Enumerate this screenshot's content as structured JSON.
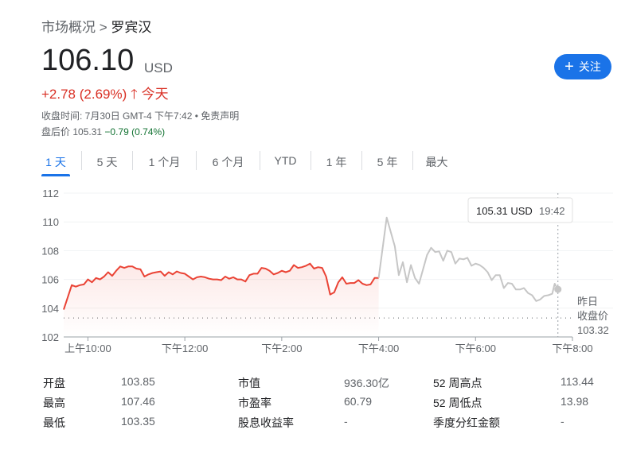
{
  "breadcrumb": {
    "parent": "市场概况",
    "separator": ">",
    "current": "罗宾汉"
  },
  "quote": {
    "price": "106.10",
    "currency": "USD",
    "change": "+2.78 (2.69%)",
    "change_direction": "up",
    "change_period": "今天",
    "close_time": "收盘时间: 7月30日 GMT-4 下午7:42 • 免责声明",
    "after_hours_label": "盘后价",
    "after_hours_price": "105.31",
    "after_hours_change": "−0.79 (0.74%)"
  },
  "follow_button": {
    "label": "关注",
    "icon": "plus-icon",
    "color": "#1a73e8"
  },
  "tabs": [
    {
      "label": "1 天",
      "selected": true
    },
    {
      "label": "5 天"
    },
    {
      "label": "1 个月"
    },
    {
      "label": "6 个月"
    },
    {
      "label": "YTD"
    },
    {
      "label": "1 年"
    },
    {
      "label": "5 年"
    },
    {
      "label": "最大"
    }
  ],
  "chart_data": {
    "type": "line",
    "ylim": [
      102,
      112
    ],
    "yticks": [
      "102",
      "104",
      "106",
      "108",
      "110",
      "112"
    ],
    "xlim": [
      "09:30",
      "20:00"
    ],
    "xticks": [
      {
        "t": "10:00",
        "label": "上午10:00"
      },
      {
        "t": "12:00",
        "label": "下午12:00"
      },
      {
        "t": "14:00",
        "label": "下午2:00"
      },
      {
        "t": "16:00",
        "label": "下午4:00"
      },
      {
        "t": "18:00",
        "label": "下午6:00"
      },
      {
        "t": "20:00",
        "label": "下午8:00"
      }
    ],
    "grid": true,
    "previous_close": {
      "label1": "昨日",
      "label2": "收盘价",
      "value": 103.32,
      "value_text": "103.32"
    },
    "tooltip": {
      "price": "105.31 USD",
      "time": "19:42"
    },
    "colors": {
      "regular": "#ea4335",
      "after_hours": "#c6c6c6"
    },
    "series": [
      {
        "session": "regular",
        "points": [
          [
            "09:30",
            103.9
          ],
          [
            "09:40",
            105.6
          ],
          [
            "09:45",
            105.5
          ],
          [
            "09:50",
            105.6
          ],
          [
            "09:55",
            105.65
          ],
          [
            "10:00",
            106.0
          ],
          [
            "10:05",
            105.8
          ],
          [
            "10:10",
            106.1
          ],
          [
            "10:15",
            106.0
          ],
          [
            "10:20",
            106.2
          ],
          [
            "10:25",
            106.5
          ],
          [
            "10:30",
            106.25
          ],
          [
            "10:35",
            106.6
          ],
          [
            "10:40",
            106.9
          ],
          [
            "10:45",
            106.8
          ],
          [
            "10:50",
            106.9
          ],
          [
            "10:55",
            106.9
          ],
          [
            "11:00",
            106.75
          ],
          [
            "11:05",
            106.7
          ],
          [
            "11:10",
            106.2
          ],
          [
            "11:15",
            106.35
          ],
          [
            "11:20",
            106.45
          ],
          [
            "11:25",
            106.5
          ],
          [
            "11:30",
            106.55
          ],
          [
            "11:35",
            106.25
          ],
          [
            "11:40",
            106.5
          ],
          [
            "11:45",
            106.35
          ],
          [
            "11:50",
            106.55
          ],
          [
            "11:55",
            106.45
          ],
          [
            "12:00",
            106.4
          ],
          [
            "12:05",
            106.2
          ],
          [
            "12:10",
            106.0
          ],
          [
            "12:15",
            106.15
          ],
          [
            "12:20",
            106.2
          ],
          [
            "12:25",
            106.15
          ],
          [
            "12:30",
            106.05
          ],
          [
            "12:35",
            106.0
          ],
          [
            "12:40",
            106.0
          ],
          [
            "12:45",
            105.95
          ],
          [
            "12:50",
            106.2
          ],
          [
            "12:55",
            106.05
          ],
          [
            "13:00",
            106.15
          ],
          [
            "13:05",
            106.0
          ],
          [
            "13:10",
            106.0
          ],
          [
            "13:15",
            105.85
          ],
          [
            "13:20",
            106.3
          ],
          [
            "13:25",
            106.4
          ],
          [
            "13:30",
            106.4
          ],
          [
            "13:35",
            106.8
          ],
          [
            "13:40",
            106.75
          ],
          [
            "13:45",
            106.6
          ],
          [
            "13:50",
            106.35
          ],
          [
            "13:55",
            106.45
          ],
          [
            "14:00",
            106.6
          ],
          [
            "14:05",
            106.5
          ],
          [
            "14:10",
            106.6
          ],
          [
            "14:15",
            107.0
          ],
          [
            "14:20",
            106.8
          ],
          [
            "14:25",
            106.85
          ],
          [
            "14:30",
            106.95
          ],
          [
            "14:35",
            107.1
          ],
          [
            "14:40",
            106.75
          ],
          [
            "14:45",
            106.85
          ],
          [
            "14:50",
            106.8
          ],
          [
            "14:55",
            106.2
          ],
          [
            "15:00",
            104.95
          ],
          [
            "15:05",
            105.1
          ],
          [
            "15:10",
            105.8
          ],
          [
            "15:15",
            106.15
          ],
          [
            "15:20",
            105.7
          ],
          [
            "15:25",
            105.75
          ],
          [
            "15:30",
            105.75
          ],
          [
            "15:35",
            105.95
          ],
          [
            "15:40",
            105.7
          ],
          [
            "15:45",
            105.6
          ],
          [
            "15:50",
            105.65
          ],
          [
            "15:55",
            106.1
          ],
          [
            "16:00",
            106.1
          ]
        ]
      },
      {
        "session": "after_hours",
        "points": [
          [
            "16:00",
            106.1
          ],
          [
            "16:10",
            110.3
          ],
          [
            "16:20",
            108.3
          ],
          [
            "16:25",
            106.3
          ],
          [
            "16:30",
            107.2
          ],
          [
            "16:35",
            105.8
          ],
          [
            "16:40",
            107.0
          ],
          [
            "16:45",
            106.1
          ],
          [
            "16:50",
            105.7
          ],
          [
            "17:00",
            107.7
          ],
          [
            "17:05",
            108.2
          ],
          [
            "17:10",
            107.9
          ],
          [
            "17:15",
            107.95
          ],
          [
            "17:20",
            107.3
          ],
          [
            "17:25",
            108.0
          ],
          [
            "17:30",
            107.9
          ],
          [
            "17:35",
            107.1
          ],
          [
            "17:40",
            107.45
          ],
          [
            "17:45",
            107.4
          ],
          [
            "17:50",
            107.5
          ],
          [
            "17:55",
            106.95
          ],
          [
            "18:00",
            107.1
          ],
          [
            "18:05",
            107.0
          ],
          [
            "18:10",
            106.8
          ],
          [
            "18:15",
            106.5
          ],
          [
            "18:20",
            105.95
          ],
          [
            "18:25",
            106.3
          ],
          [
            "18:30",
            106.3
          ],
          [
            "18:35",
            105.4
          ],
          [
            "18:40",
            105.75
          ],
          [
            "18:45",
            105.7
          ],
          [
            "18:50",
            105.3
          ],
          [
            "18:55",
            105.3
          ],
          [
            "19:00",
            105.4
          ],
          [
            "19:05",
            105.05
          ],
          [
            "19:10",
            104.9
          ],
          [
            "19:15",
            104.5
          ],
          [
            "19:20",
            104.6
          ],
          [
            "19:25",
            104.85
          ],
          [
            "19:30",
            104.9
          ],
          [
            "19:35",
            105.0
          ],
          [
            "19:38",
            105.7
          ],
          [
            "19:42",
            105.31
          ]
        ]
      }
    ]
  },
  "stats": [
    [
      {
        "label": "开盘",
        "value": "103.85"
      },
      {
        "label": "市值",
        "value": "936.30亿"
      },
      {
        "label": "52 周高点",
        "value": "113.44"
      }
    ],
    [
      {
        "label": "最高",
        "value": "107.46"
      },
      {
        "label": "市盈率",
        "value": "60.79"
      },
      {
        "label": "52 周低点",
        "value": "13.98"
      }
    ],
    [
      {
        "label": "最低",
        "value": "103.35"
      },
      {
        "label": "股息收益率",
        "value": "-"
      },
      {
        "label": "季度分红金额",
        "value": "-"
      }
    ]
  ]
}
